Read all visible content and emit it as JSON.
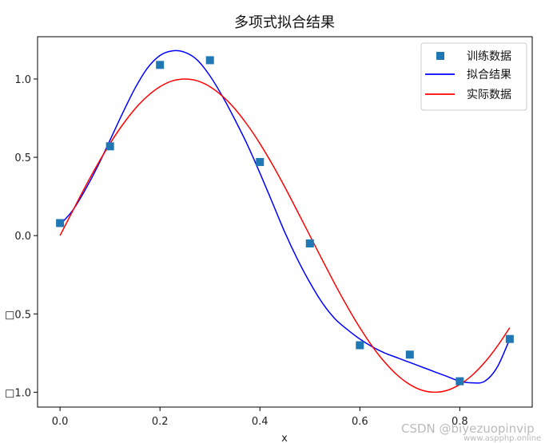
{
  "chart_data": {
    "type": "line",
    "title": "多项式拟合结果",
    "xlabel": "x",
    "ylabel": "",
    "xlim": [
      -0.045,
      0.945
    ],
    "ylim": [
      -1.095,
      1.27
    ],
    "xticks": [
      0.0,
      0.2,
      0.4,
      0.6,
      0.8
    ],
    "xtick_labels": [
      "0.0",
      "0.2",
      "0.4",
      "0.6",
      "0.8"
    ],
    "yticks": [
      1.0,
      0.5,
      0.0,
      -0.5,
      -1.0
    ],
    "ytick_labels": [
      "1.0",
      "0.5",
      "0.0",
      "□0.5",
      "□1.0"
    ],
    "legend_position": "top-right",
    "grid": false,
    "series": [
      {
        "name": "训练数据",
        "kind": "scatter",
        "marker": "square",
        "color": "#1f77b4",
        "x": [
          0.0,
          0.1,
          0.2,
          0.3,
          0.4,
          0.5,
          0.6,
          0.7,
          0.8,
          0.9
        ],
        "y": [
          0.08,
          0.57,
          1.09,
          1.12,
          0.47,
          -0.05,
          -0.7,
          -0.76,
          -0.93,
          -0.66
        ]
      },
      {
        "name": "拟合结果",
        "kind": "line",
        "color": "#0000ff",
        "x": [
          0.0,
          0.025,
          0.05,
          0.075,
          0.1,
          0.125,
          0.15,
          0.175,
          0.2,
          0.225,
          0.25,
          0.275,
          0.3,
          0.325,
          0.35,
          0.375,
          0.4,
          0.425,
          0.45,
          0.475,
          0.5,
          0.525,
          0.55,
          0.575,
          0.6,
          0.625,
          0.65,
          0.675,
          0.7,
          0.725,
          0.75,
          0.775,
          0.8,
          0.825,
          0.85,
          0.875,
          0.9
        ],
        "y": [
          0.07,
          0.16,
          0.29,
          0.44,
          0.61,
          0.78,
          0.94,
          1.07,
          1.15,
          1.18,
          1.17,
          1.12,
          1.02,
          0.89,
          0.74,
          0.58,
          0.4,
          0.21,
          0.02,
          -0.15,
          -0.3,
          -0.43,
          -0.53,
          -0.6,
          -0.66,
          -0.71,
          -0.75,
          -0.78,
          -0.81,
          -0.84,
          -0.87,
          -0.9,
          -0.93,
          -0.94,
          -0.93,
          -0.84,
          -0.66
        ]
      },
      {
        "name": "实际数据",
        "kind": "line",
        "color": "#ff0000",
        "x": [
          0.0,
          0.025,
          0.05,
          0.075,
          0.1,
          0.125,
          0.15,
          0.175,
          0.2,
          0.225,
          0.25,
          0.275,
          0.3,
          0.325,
          0.35,
          0.375,
          0.4,
          0.425,
          0.45,
          0.475,
          0.5,
          0.525,
          0.55,
          0.575,
          0.6,
          0.625,
          0.65,
          0.675,
          0.7,
          0.725,
          0.75,
          0.775,
          0.8,
          0.825,
          0.85,
          0.875,
          0.9
        ],
        "y": [
          0.0,
          0.156,
          0.309,
          0.454,
          0.588,
          0.707,
          0.809,
          0.891,
          0.951,
          0.988,
          1.0,
          0.988,
          0.951,
          0.891,
          0.809,
          0.707,
          0.588,
          0.454,
          0.309,
          0.156,
          0.0,
          -0.156,
          -0.309,
          -0.454,
          -0.588,
          -0.707,
          -0.809,
          -0.891,
          -0.951,
          -0.988,
          -1.0,
          -0.988,
          -0.951,
          -0.891,
          -0.809,
          -0.707,
          -0.588
        ]
      }
    ]
  },
  "watermark": {
    "main": "CSDN @biyezuopinvip",
    "sub": "www.aspphp.online"
  }
}
